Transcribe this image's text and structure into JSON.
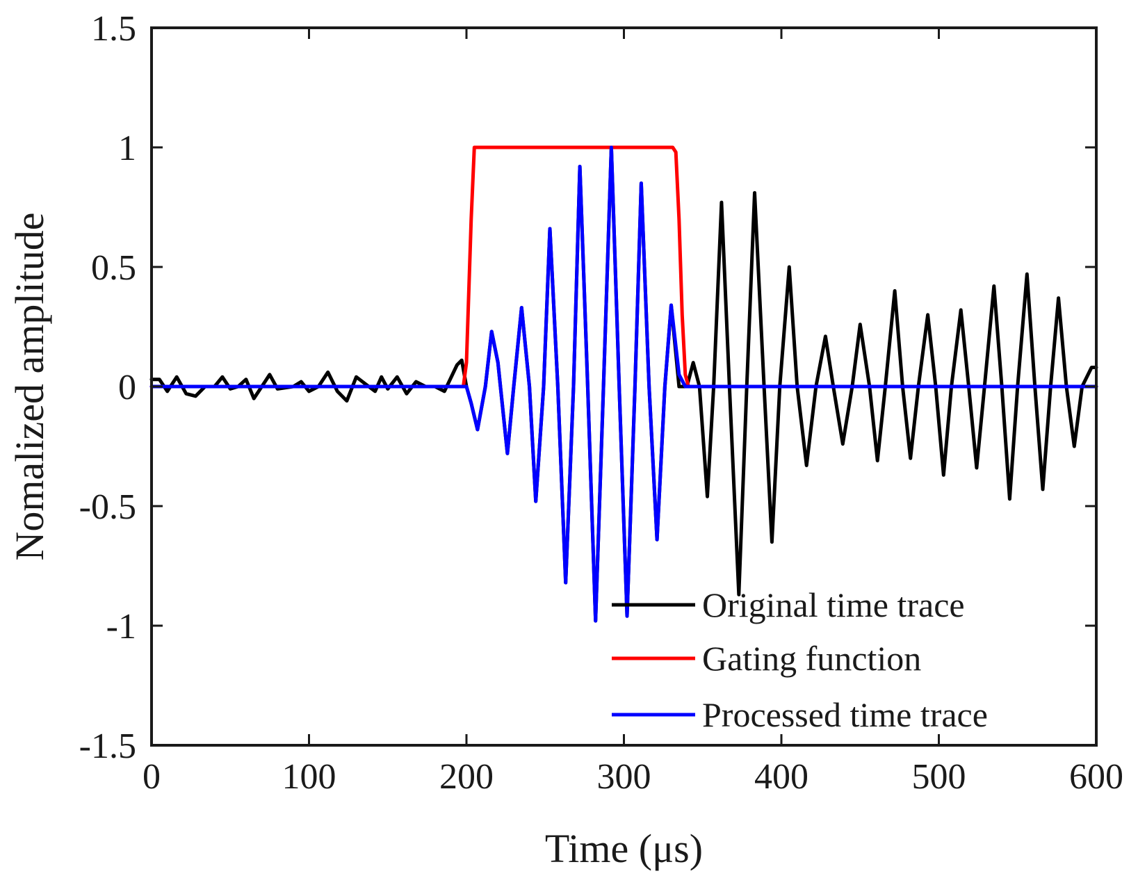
{
  "chart_data": {
    "type": "line",
    "title": "",
    "xlabel": "Time (μs)",
    "ylabel": "Nomalized amplitude",
    "xlim": [
      0,
      600
    ],
    "ylim": [
      -1.5,
      1.5
    ],
    "xticks": [
      0,
      100,
      200,
      300,
      400,
      500,
      600
    ],
    "yticks": [
      1.5,
      1,
      0.5,
      0,
      -0.5,
      -1,
      -1.5
    ],
    "xtick_labels": [
      "0",
      "100",
      "200",
      "300",
      "400",
      "500",
      "600"
    ],
    "ytick_labels": [
      "1.5",
      "1",
      "0.5",
      "0",
      "-0.5",
      "-1",
      "-1.5"
    ],
    "grid": false,
    "legend_position": "bottom-right",
    "series": [
      {
        "name": "Original time trace",
        "color": "#000000",
        "points": [
          [
            0,
            0.03
          ],
          [
            5,
            0.03
          ],
          [
            10,
            -0.02
          ],
          [
            16,
            0.04
          ],
          [
            22,
            -0.03
          ],
          [
            28,
            -0.04
          ],
          [
            34,
            0.0
          ],
          [
            40,
            0.0
          ],
          [
            45,
            0.04
          ],
          [
            50,
            -0.01
          ],
          [
            55,
            0.0
          ],
          [
            60,
            0.03
          ],
          [
            65,
            -0.05
          ],
          [
            70,
            0.0
          ],
          [
            75,
            0.05
          ],
          [
            80,
            -0.01
          ],
          [
            90,
            0.0
          ],
          [
            95,
            0.02
          ],
          [
            100,
            -0.02
          ],
          [
            106,
            0.0
          ],
          [
            112,
            0.06
          ],
          [
            118,
            -0.02
          ],
          [
            124,
            -0.06
          ],
          [
            130,
            0.04
          ],
          [
            136,
            0.01
          ],
          [
            142,
            -0.02
          ],
          [
            146,
            0.04
          ],
          [
            150,
            -0.01
          ],
          [
            156,
            0.04
          ],
          [
            162,
            -0.03
          ],
          [
            168,
            0.02
          ],
          [
            174,
            0.0
          ],
          [
            180,
            0.0
          ],
          [
            186,
            -0.02
          ],
          [
            194,
            0.09
          ],
          [
            197,
            0.11
          ],
          [
            200,
            0.0
          ],
          [
            203,
            -0.07
          ],
          [
            207,
            -0.18
          ],
          [
            212,
            0.0
          ],
          [
            216,
            0.23
          ],
          [
            220,
            0.1
          ],
          [
            226,
            -0.28
          ],
          [
            230,
            0.0
          ],
          [
            235,
            0.33
          ],
          [
            240,
            0.0
          ],
          [
            244,
            -0.48
          ],
          [
            249,
            0.0
          ],
          [
            253,
            0.66
          ],
          [
            258,
            0.0
          ],
          [
            263,
            -0.82
          ],
          [
            268,
            0.0
          ],
          [
            272,
            0.92
          ],
          [
            277,
            0.0
          ],
          [
            282,
            -0.98
          ],
          [
            287,
            0.0
          ],
          [
            292,
            1.0
          ],
          [
            297,
            0.0
          ],
          [
            302,
            -0.96
          ],
          [
            307,
            0.0
          ],
          [
            311,
            0.85
          ],
          [
            316,
            0.0
          ],
          [
            321,
            -0.64
          ],
          [
            326,
            0.0
          ],
          [
            330,
            0.34
          ],
          [
            335,
            0.0
          ],
          [
            340,
            0.0
          ],
          [
            344,
            0.1
          ],
          [
            348,
            0.0
          ],
          [
            353,
            -0.46
          ],
          [
            357,
            0.0
          ],
          [
            362,
            0.77
          ],
          [
            367,
            0.0
          ],
          [
            373,
            -0.87
          ],
          [
            378,
            0.0
          ],
          [
            383,
            0.81
          ],
          [
            389,
            0.0
          ],
          [
            394,
            -0.65
          ],
          [
            399,
            0.0
          ],
          [
            405,
            0.5
          ],
          [
            410,
            0.0
          ],
          [
            416,
            -0.33
          ],
          [
            422,
            0.0
          ],
          [
            428,
            0.21
          ],
          [
            433,
            0.0
          ],
          [
            439,
            -0.24
          ],
          [
            445,
            0.0
          ],
          [
            450,
            0.26
          ],
          [
            456,
            0.0
          ],
          [
            461,
            -0.31
          ],
          [
            466,
            0.0
          ],
          [
            472,
            0.4
          ],
          [
            477,
            0.0
          ],
          [
            482,
            -0.3
          ],
          [
            487,
            0.0
          ],
          [
            493,
            0.3
          ],
          [
            498,
            0.0
          ],
          [
            503,
            -0.37
          ],
          [
            508,
            0.0
          ],
          [
            514,
            0.32
          ],
          [
            519,
            0.0
          ],
          [
            524,
            -0.34
          ],
          [
            529,
            0.0
          ],
          [
            535,
            0.42
          ],
          [
            540,
            0.0
          ],
          [
            545,
            -0.47
          ],
          [
            550,
            0.0
          ],
          [
            556,
            0.47
          ],
          [
            561,
            0.0
          ],
          [
            566,
            -0.43
          ],
          [
            571,
            0.0
          ],
          [
            576,
            0.37
          ],
          [
            581,
            0.0
          ],
          [
            586,
            -0.25
          ],
          [
            591,
            0.0
          ],
          [
            597,
            0.08
          ],
          [
            600,
            0.08
          ]
        ]
      },
      {
        "name": "Gating function",
        "color": "#ff0000",
        "points": [
          [
            0,
            0
          ],
          [
            198,
            0
          ],
          [
            200,
            0.1
          ],
          [
            203,
            0.7
          ],
          [
            205,
            1.0
          ],
          [
            207,
            1.0
          ],
          [
            331,
            1.0
          ],
          [
            333,
            0.98
          ],
          [
            335,
            0.7
          ],
          [
            337,
            0.3
          ],
          [
            339,
            0.05
          ],
          [
            341,
            0
          ],
          [
            600,
            0
          ]
        ]
      },
      {
        "name": "Processed time trace",
        "color": "#0000ff",
        "points": [
          [
            0,
            0
          ],
          [
            200,
            0
          ],
          [
            203,
            -0.07
          ],
          [
            207,
            -0.18
          ],
          [
            212,
            0.0
          ],
          [
            216,
            0.23
          ],
          [
            220,
            0.1
          ],
          [
            226,
            -0.28
          ],
          [
            230,
            0.0
          ],
          [
            235,
            0.33
          ],
          [
            240,
            0.0
          ],
          [
            244,
            -0.48
          ],
          [
            249,
            0.0
          ],
          [
            253,
            0.66
          ],
          [
            258,
            0.0
          ],
          [
            263,
            -0.82
          ],
          [
            268,
            0.0
          ],
          [
            272,
            0.92
          ],
          [
            277,
            0.0
          ],
          [
            282,
            -0.98
          ],
          [
            287,
            0.0
          ],
          [
            292,
            1.0
          ],
          [
            297,
            0.0
          ],
          [
            302,
            -0.96
          ],
          [
            307,
            0.0
          ],
          [
            311,
            0.85
          ],
          [
            316,
            0.0
          ],
          [
            321,
            -0.64
          ],
          [
            326,
            0.0
          ],
          [
            330,
            0.34
          ],
          [
            335,
            0.05
          ],
          [
            339,
            0.0
          ],
          [
            600,
            0
          ]
        ]
      }
    ]
  }
}
